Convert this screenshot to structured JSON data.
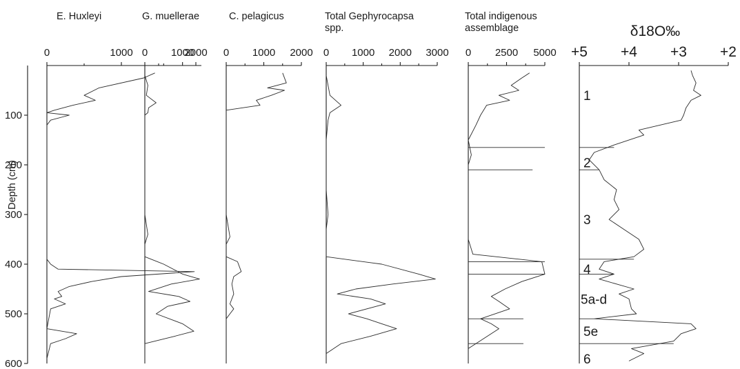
{
  "figure": {
    "y_axis_label": "Depth (cm)",
    "depth_ticks": [
      100,
      200,
      300,
      400,
      500,
      600
    ]
  },
  "chart_data": [
    {
      "type": "line",
      "title": "E. Huxleyi",
      "xlim": [
        0,
        2000
      ],
      "x_ticks": [
        0,
        1000,
        2000
      ],
      "ylim": [
        0,
        600
      ],
      "ylabel": "Depth (cm)",
      "points": [
        [
          1450,
          15
        ],
        [
          1300,
          25
        ],
        [
          700,
          45
        ],
        [
          500,
          60
        ],
        [
          650,
          70
        ],
        [
          350,
          80
        ],
        [
          100,
          90
        ],
        [
          0,
          95
        ],
        [
          300,
          100
        ],
        [
          50,
          110
        ],
        [
          0,
          120
        ],
        [
          0,
          250
        ],
        [
          0,
          300
        ],
        [
          0,
          360
        ],
        [
          0,
          390
        ],
        [
          50,
          400
        ],
        [
          150,
          410
        ],
        [
          1980,
          415
        ],
        [
          1000,
          425
        ],
        [
          600,
          435
        ],
        [
          300,
          445
        ],
        [
          150,
          455
        ],
        [
          200,
          465
        ],
        [
          100,
          470
        ],
        [
          250,
          480
        ],
        [
          50,
          490
        ],
        [
          0,
          530
        ],
        [
          400,
          540
        ],
        [
          250,
          550
        ],
        [
          50,
          560
        ],
        [
          0,
          590
        ]
      ]
    },
    {
      "type": "line",
      "title": "G. muellerae",
      "xlim": [
        0,
        1500
      ],
      "x_ticks": [
        0,
        1000
      ],
      "ylim": [
        0,
        600
      ],
      "points": [
        [
          0,
          20
        ],
        [
          80,
          40
        ],
        [
          40,
          60
        ],
        [
          300,
          75
        ],
        [
          100,
          85
        ],
        [
          80,
          95
        ],
        [
          0,
          100
        ],
        [
          0,
          200
        ],
        [
          0,
          300
        ],
        [
          80,
          340
        ],
        [
          0,
          360
        ],
        [
          0,
          385
        ],
        [
          500,
          400
        ],
        [
          1000,
          420
        ],
        [
          1450,
          430
        ],
        [
          700,
          440
        ],
        [
          100,
          455
        ],
        [
          900,
          465
        ],
        [
          1200,
          475
        ],
        [
          600,
          485
        ],
        [
          300,
          500
        ],
        [
          1000,
          520
        ],
        [
          1300,
          535
        ],
        [
          800,
          545
        ],
        [
          0,
          560
        ],
        [
          0,
          600
        ]
      ]
    },
    {
      "type": "line",
      "title": "C. pelagicus",
      "xlim": [
        0,
        2000
      ],
      "x_ticks": [
        0,
        1000,
        2000
      ],
      "ylim": [
        0,
        600
      ],
      "points": [
        [
          1500,
          15
        ],
        [
          1600,
          35
        ],
        [
          1100,
          45
        ],
        [
          1550,
          50
        ],
        [
          1200,
          60
        ],
        [
          800,
          70
        ],
        [
          900,
          80
        ],
        [
          0,
          90
        ],
        [
          0,
          200
        ],
        [
          0,
          300
        ],
        [
          100,
          345
        ],
        [
          0,
          360
        ],
        [
          0,
          385
        ],
        [
          300,
          395
        ],
        [
          400,
          415
        ],
        [
          200,
          425
        ],
        [
          150,
          440
        ],
        [
          200,
          460
        ],
        [
          100,
          480
        ],
        [
          200,
          490
        ],
        [
          100,
          500
        ],
        [
          0,
          510
        ],
        [
          0,
          600
        ]
      ]
    },
    {
      "type": "line",
      "title": "Total Gephyrocapsa spp.",
      "xlim": [
        0,
        3000
      ],
      "x_ticks": [
        0,
        1000,
        2000,
        3000
      ],
      "ylim": [
        0,
        600
      ],
      "points": [
        [
          0,
          20
        ],
        [
          50,
          40
        ],
        [
          100,
          60
        ],
        [
          400,
          80
        ],
        [
          100,
          95
        ],
        [
          50,
          110
        ],
        [
          0,
          150
        ],
        [
          0,
          200
        ],
        [
          0,
          250
        ],
        [
          50,
          300
        ],
        [
          0,
          330
        ],
        [
          0,
          385
        ],
        [
          1500,
          400
        ],
        [
          2500,
          420
        ],
        [
          2950,
          430
        ],
        [
          1800,
          440
        ],
        [
          800,
          450
        ],
        [
          300,
          460
        ],
        [
          1200,
          470
        ],
        [
          1600,
          480
        ],
        [
          600,
          500
        ],
        [
          1100,
          510
        ],
        [
          1500,
          520
        ],
        [
          1900,
          530
        ],
        [
          1200,
          545
        ],
        [
          400,
          560
        ],
        [
          0,
          580
        ],
        [
          0,
          600
        ]
      ]
    },
    {
      "type": "line",
      "title": "Total indigenous assemblage",
      "xlim": [
        0,
        5000
      ],
      "x_ticks": [
        0,
        2500,
        5000
      ],
      "ylim": [
        0,
        600
      ],
      "points": [
        [
          4000,
          15
        ],
        [
          3500,
          25
        ],
        [
          2800,
          40
        ],
        [
          3300,
          50
        ],
        [
          2000,
          60
        ],
        [
          2700,
          70
        ],
        [
          1200,
          80
        ],
        [
          800,
          100
        ],
        [
          500,
          120
        ],
        [
          0,
          150
        ],
        [
          200,
          180
        ],
        [
          0,
          200
        ],
        [
          0,
          250
        ],
        [
          0,
          300
        ],
        [
          0,
          350
        ],
        [
          300,
          380
        ],
        [
          4800,
          395
        ],
        [
          5000,
          420
        ],
        [
          3500,
          435
        ],
        [
          2400,
          450
        ],
        [
          1500,
          465
        ],
        [
          2000,
          475
        ],
        [
          2700,
          490
        ],
        [
          800,
          510
        ],
        [
          1500,
          520
        ],
        [
          2000,
          530
        ],
        [
          1000,
          550
        ],
        [
          0,
          570
        ],
        [
          0,
          600
        ]
      ],
      "horizontal_markers": [
        [
          165,
          5000
        ],
        [
          210,
          4200
        ],
        [
          395,
          5000
        ],
        [
          420,
          5000
        ],
        [
          510,
          3600
        ],
        [
          560,
          3600
        ]
      ]
    },
    {
      "type": "line",
      "title": "δ18O‰",
      "xlim": [
        5,
        2
      ],
      "x_ticks": [
        5,
        4,
        3,
        2
      ],
      "x_tick_labels": [
        "+5",
        "+4",
        "+3",
        "+2"
      ],
      "ylim": [
        0,
        600
      ],
      "points": [
        [
          2.75,
          10
        ],
        [
          2.72,
          20
        ],
        [
          2.65,
          35
        ],
        [
          2.7,
          50
        ],
        [
          2.55,
          60
        ],
        [
          2.75,
          70
        ],
        [
          2.85,
          85
        ],
        [
          2.9,
          100
        ],
        [
          2.95,
          110
        ],
        [
          3.8,
          130
        ],
        [
          3.7,
          140
        ],
        [
          4.3,
          160
        ],
        [
          4.7,
          175
        ],
        [
          4.8,
          190
        ],
        [
          4.6,
          210
        ],
        [
          4.5,
          230
        ],
        [
          4.25,
          250
        ],
        [
          4.3,
          270
        ],
        [
          4.2,
          290
        ],
        [
          4.4,
          310
        ],
        [
          4.1,
          330
        ],
        [
          3.8,
          350
        ],
        [
          3.7,
          370
        ],
        [
          3.9,
          385
        ],
        [
          4.5,
          395
        ],
        [
          4.6,
          410
        ],
        [
          4.3,
          420
        ],
        [
          4.6,
          430
        ],
        [
          4.25,
          440
        ],
        [
          3.9,
          450
        ],
        [
          4.2,
          460
        ],
        [
          4.0,
          470
        ],
        [
          3.95,
          490
        ],
        [
          3.85,
          500
        ],
        [
          4.7,
          510
        ],
        [
          2.75,
          520
        ],
        [
          2.65,
          530
        ],
        [
          2.95,
          540
        ],
        [
          3.1,
          555
        ],
        [
          3.95,
          570
        ],
        [
          3.7,
          580
        ],
        [
          4.0,
          595
        ]
      ],
      "stage_labels": [
        {
          "label": "1",
          "depth": 60
        },
        {
          "label": "2",
          "depth": 195
        },
        {
          "label": "3",
          "depth": 310
        },
        {
          "label": "4",
          "depth": 410
        },
        {
          "label": "5a-d",
          "depth": 470
        },
        {
          "label": "5e",
          "depth": 535
        },
        {
          "label": "6",
          "depth": 590
        }
      ],
      "stage_boundaries": [
        165,
        210,
        390,
        420,
        510,
        560
      ]
    }
  ]
}
